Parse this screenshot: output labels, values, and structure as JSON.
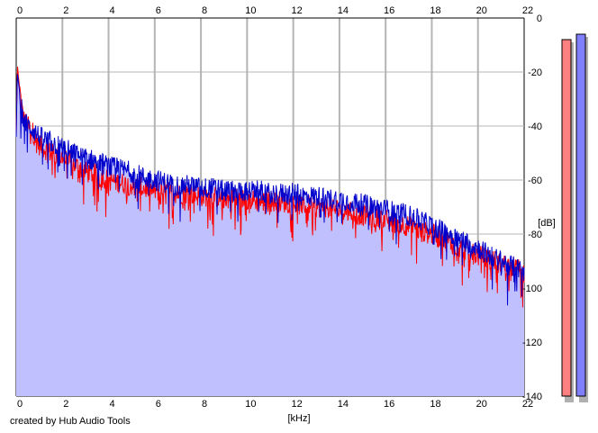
{
  "credit": "created by Hub Audio Tools",
  "colors": {
    "fill": "#c0c0ff",
    "left_channel": "#ff0000",
    "right_channel": "#0000cc",
    "grid": "#b4b4b4",
    "left_meter": "#ff8080",
    "right_meter": "#8080ff"
  },
  "chart_data": {
    "type": "line",
    "x_unit_label": "[kHz]",
    "y_unit_label": "[dB]",
    "xlim": [
      0,
      22
    ],
    "ylim": [
      -140,
      0
    ],
    "x_ticks": [
      0,
      2,
      4,
      6,
      8,
      10,
      12,
      14,
      16,
      18,
      20,
      22
    ],
    "y_ticks": [
      0,
      -20,
      -40,
      -60,
      -80,
      -100,
      -120,
      -140
    ],
    "grid": true,
    "x_axis_position": "top-and-bottom",
    "y_axis_position": "right",
    "series": [
      {
        "channel": "left",
        "color": "#ff0000",
        "x": [
          0,
          0.05,
          0.1,
          0.2,
          0.3,
          0.5,
          0.7,
          1,
          1.5,
          2,
          2.5,
          3,
          3.5,
          4,
          4.5,
          5,
          5.5,
          6,
          6.5,
          7,
          7.5,
          8,
          8.5,
          9,
          9.5,
          10,
          10.5,
          11,
          11.5,
          12,
          12.5,
          13,
          13.5,
          14,
          14.5,
          15,
          15.5,
          16,
          16.5,
          17,
          17.5,
          18,
          18.5,
          19,
          19.5,
          20,
          20.5,
          21,
          21.5,
          22
        ],
        "values": [
          -43,
          -17,
          -22,
          -30,
          -37,
          -40,
          -42,
          -47,
          -50,
          -52,
          -54,
          -57,
          -58,
          -60,
          -61,
          -62,
          -63,
          -64,
          -64,
          -65,
          -65,
          -66,
          -66,
          -67,
          -67,
          -67,
          -68,
          -68,
          -68,
          -69,
          -69,
          -70,
          -70,
          -71,
          -72,
          -73,
          -74,
          -75,
          -76,
          -77,
          -79,
          -80,
          -82,
          -84,
          -86,
          -88,
          -89,
          -91,
          -92,
          -94
        ]
      },
      {
        "channel": "right",
        "color": "#0000cc",
        "x": [
          0,
          0.05,
          0.1,
          0.2,
          0.3,
          0.5,
          0.7,
          1,
          1.5,
          2,
          2.5,
          3,
          3.5,
          4,
          4.5,
          5,
          5.5,
          6,
          6.5,
          7,
          7.5,
          8,
          8.5,
          9,
          9.5,
          10,
          10.5,
          11,
          11.5,
          12,
          12.5,
          13,
          13.5,
          14,
          14.5,
          15,
          15.5,
          16,
          16.5,
          17,
          17.5,
          18,
          18.5,
          19,
          19.5,
          20,
          20.5,
          21,
          21.5,
          22
        ],
        "values": [
          -44,
          -20,
          -24,
          -31,
          -38,
          -40,
          -41,
          -44,
          -46,
          -48,
          -50,
          -52,
          -53,
          -55,
          -56,
          -57,
          -59,
          -60,
          -61,
          -62,
          -62,
          -63,
          -63,
          -64,
          -64,
          -64,
          -64,
          -65,
          -65,
          -65,
          -66,
          -66,
          -67,
          -67,
          -68,
          -69,
          -70,
          -71,
          -72,
          -73,
          -75,
          -77,
          -79,
          -81,
          -83,
          -85,
          -88,
          -90,
          -92,
          -94
        ]
      }
    ],
    "meters": [
      {
        "channel": "left",
        "color": "#ff8080",
        "level_db": -8
      },
      {
        "channel": "right",
        "color": "#8080ff",
        "level_db": -6
      }
    ]
  }
}
